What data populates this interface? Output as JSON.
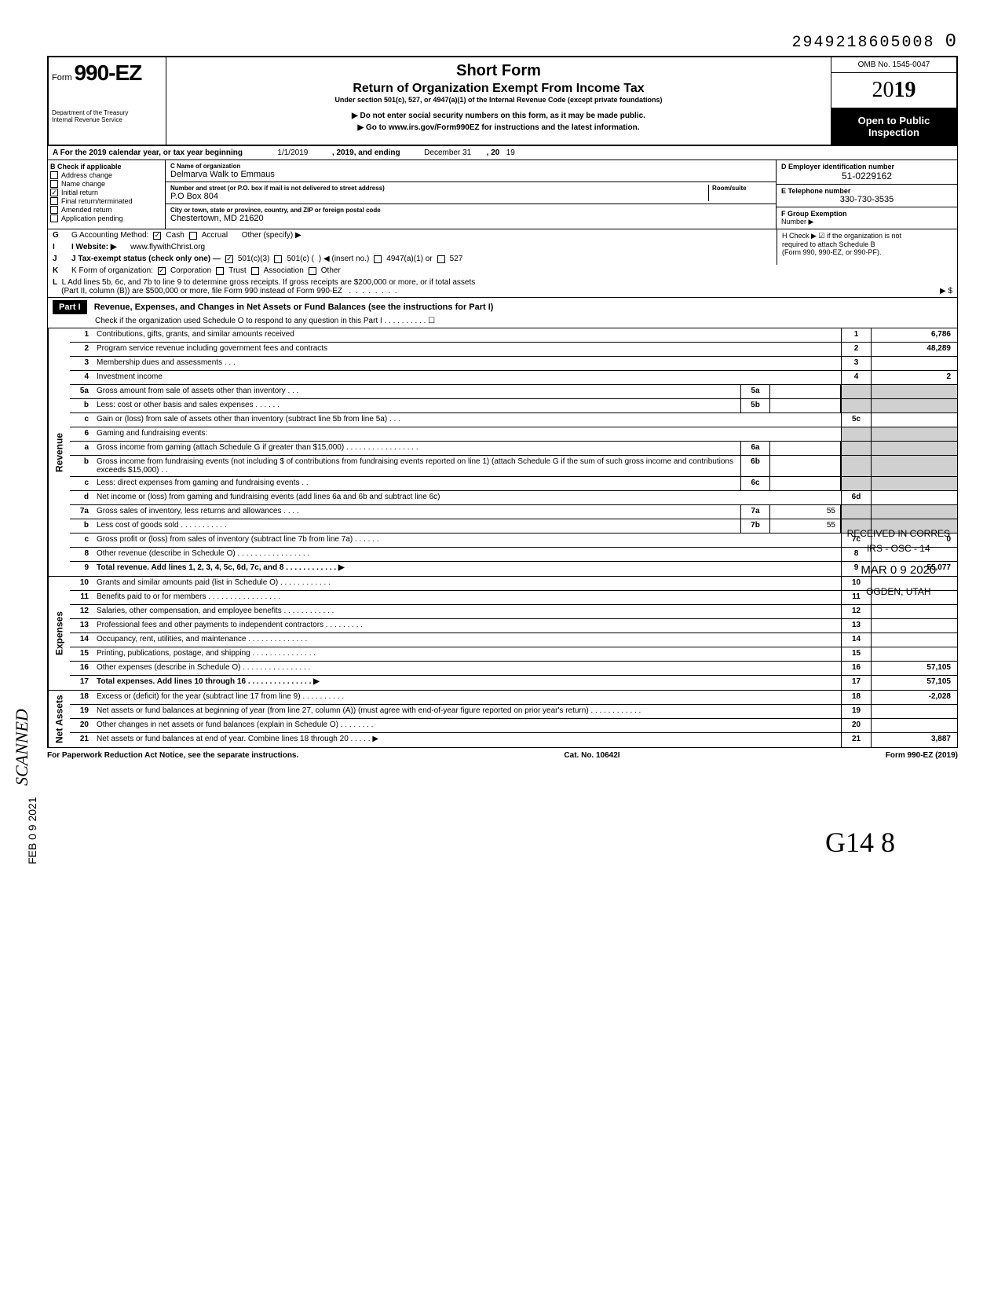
{
  "dln": "2949218605008",
  "dln_suffix": "0",
  "omb": "OMB No. 1545-0047",
  "year": "2019",
  "open_public_1": "Open to Public",
  "open_public_2": "Inspection",
  "form_prefix": "Form",
  "form_number": "990-EZ",
  "dept1": "Department of the Treasury",
  "dept2": "Internal Revenue Service",
  "title_main": "Short Form",
  "title_sub": "Return of Organization Exempt From Income Tax",
  "title_small": "Under section 501(c), 527, or 4947(a)(1) of the Internal Revenue Code (except private foundations)",
  "instruct1": "▶ Do not enter social security numbers on this form, as it may be made public.",
  "instruct2": "▶ Go to www.irs.gov/Form990EZ for instructions and the latest information.",
  "rowA": {
    "label": "A For the 2019 calendar year, or tax year beginning",
    "begin": "1/1/2019",
    "mid": ", 2019, and ending",
    "end_month": "December 31",
    "end_suffix": ", 20",
    "end_yr": "19"
  },
  "B": {
    "header": "B Check if applicable",
    "addr_change": "Address change",
    "name_change": "Name change",
    "initial_return": "Initial return",
    "final_return": "Final return/terminated",
    "amended": "Amended return",
    "app_pending": "Application pending"
  },
  "C": {
    "name_lbl": "C  Name of organization",
    "name": "Delmarva Walk to Emmaus",
    "street_lbl": "Number and street (or P.O. box if mail is not delivered to street address)",
    "room_lbl": "Room/suite",
    "street": "P.O Box 804",
    "city_lbl": "City or town, state or province, country, and ZIP or foreign postal code",
    "city": "Chestertown, MD 21620"
  },
  "D": {
    "lbl": "D Employer identification number",
    "val": "51-0229162"
  },
  "E": {
    "lbl": "E Telephone number",
    "val": "330-730-3535"
  },
  "F": {
    "lbl": "F Group Exemption",
    "lbl2": "Number ▶"
  },
  "G": {
    "lbl": "G Accounting Method:",
    "cash": "Cash",
    "accrual": "Accrual",
    "other": "Other (specify) ▶"
  },
  "H": {
    "txt1": "H Check ▶ ☑ if the organization is not",
    "txt2": "required to attach Schedule B",
    "txt3": "(Form 990, 990-EZ, or 990-PF)."
  },
  "I": {
    "lbl": "I  Website: ▶",
    "val": "www.flywithChrist.org"
  },
  "J": {
    "lbl": "J Tax-exempt status (check only one) —",
    "c3": "501(c)(3)",
    "c": "501(c) (",
    "insert": ") ◀ (insert no.)",
    "a1": "4947(a)(1) or",
    "s527": "527"
  },
  "K": {
    "lbl": "K Form of organization:",
    "corp": "Corporation",
    "trust": "Trust",
    "assoc": "Association",
    "other": "Other"
  },
  "L": {
    "txt1": "L  Add lines 5b, 6c, and 7b to line 9 to determine gross receipts. If gross receipts are $200,000 or more, or if total assets",
    "txt2": "(Part II, column (B)) are $500,000 or more, file Form 990 instead of Form 990-EZ",
    "arrow": "▶  $"
  },
  "part1": {
    "header": "Part I",
    "title": "Revenue, Expenses, and Changes in Net Assets or Fund Balances (see the instructions for Part I)",
    "sub": "Check if the organization used Schedule O to respond to any question in this Part I . . . . . . . . . . ☐"
  },
  "revenue_label": "Revenue",
  "expenses_label": "Expenses",
  "netassets_label": "Net Assets",
  "lines": {
    "1": {
      "desc": "Contributions, gifts, grants, and similar amounts received",
      "val": "6,786"
    },
    "2": {
      "desc": "Program service revenue including government fees and contracts",
      "val": "48,289"
    },
    "3": {
      "desc": "Membership dues and assessments .   .   .",
      "val": ""
    },
    "4": {
      "desc": "Investment income",
      "val": "2"
    },
    "5a": {
      "desc": "Gross amount from sale of assets other than inventory   .   .   .",
      "box": "5a",
      "ival": ""
    },
    "5b": {
      "desc": "Less: cost or other basis and sales expenses .   .   .   .   .   .",
      "box": "5b",
      "ival": ""
    },
    "5c": {
      "desc": "Gain or (loss) from sale of assets other than inventory (subtract line 5b from line 5a)  .   .   .",
      "val": ""
    },
    "6": {
      "desc": "Gaming and fundraising events:"
    },
    "6a": {
      "desc": "Gross income from gaming (attach Schedule G if greater than $15,000) .   .   .   .   .   .   .   .   .   .   .   .   .   .   .   .   .",
      "box": "6a",
      "ival": ""
    },
    "6b": {
      "desc": "Gross income from fundraising events (not including  $                        of contributions from fundraising events reported on line 1) (attach Schedule G if the sum of such gross income and contributions exceeds $15,000) .  .",
      "box": "6b",
      "ival": ""
    },
    "6c": {
      "desc": "Less: direct expenses from gaming and fundraising events   .   .",
      "box": "6c",
      "ival": ""
    },
    "6d": {
      "desc": "Net income or (loss) from gaming and fundraising events (add lines 6a and 6b and subtract line 6c)",
      "val": ""
    },
    "7a": {
      "desc": "Gross sales of inventory, less returns and allowances  .   .   .   .",
      "box": "7a",
      "ival": "55"
    },
    "7b": {
      "desc": "Less cost of goods sold        .   .   .   .   .   .   .   .   .   .   .",
      "box": "7b",
      "ival": "55"
    },
    "7c": {
      "desc": "Gross profit or (loss) from sales of inventory (subtract line 7b from line 7a)   .   .   .   .   .   .",
      "val": "0"
    },
    "8": {
      "desc": "Other revenue (describe in Schedule O) .   .   .   .   .   .   .   .   .   .   .   .   .   .   .   .   .",
      "val": ""
    },
    "9": {
      "desc": "Total revenue. Add lines 1, 2, 3, 4, 5c, 6d, 7c, and 8    .   .   .   .   .   .   .   .   .   .   .   .  ▶",
      "val": "55,077",
      "bold": true
    },
    "10": {
      "desc": "Grants and similar amounts paid (list in Schedule O)   .   .   .   .   .   .   .   .   .   .   .   .",
      "val": ""
    },
    "11": {
      "desc": "Benefits paid to or for members    .   .   .   .   .   .   .   .   .   .   .   .   .   .   .   .   .",
      "val": ""
    },
    "12": {
      "desc": "Salaries, other compensation, and employee benefits  .   .   .   .   .   .   .   .   .   .   .   .",
      "val": ""
    },
    "13": {
      "desc": "Professional fees and other payments to independent contractors .   .   .   .   .   .   .   .   .",
      "val": ""
    },
    "14": {
      "desc": "Occupancy, rent, utilities, and maintenance     .   .   .   .   .   .   .   .   .   .   .   .   .   .",
      "val": ""
    },
    "15": {
      "desc": "Printing, publications, postage, and shipping .   .   .   .   .   .   .   .   .   .   .   .   .   .   .",
      "val": ""
    },
    "16": {
      "desc": "Other expenses (describe in Schedule O)  .   .   .   .   .   .   .   .   .   .   .   .   .   .   .   .",
      "val": "57,105"
    },
    "17": {
      "desc": "Total expenses. Add lines 10 through 16  .   .   .   .   .   .   .   .   .   .   .   .   .   .   .   ▶",
      "val": "57,105",
      "bold": true
    },
    "18": {
      "desc": "Excess or (deficit) for the year (subtract line 17 from line 9)    .   .   .   .   .   .   .   .   .   .",
      "val": "-2,028"
    },
    "19": {
      "desc": "Net assets or fund balances at beginning of year (from line 27, column (A)) (must agree with end-of-year figure reported on prior year's return)     .   .   .   .   .   .   .   .   .   .   .   .",
      "val": ""
    },
    "20": {
      "desc": "Other changes in net assets or fund balances (explain in Schedule O) .   .   .   .   .   .   .   .",
      "val": ""
    },
    "21": {
      "desc": "Net assets or fund balances at end of year. Combine lines 18 through 20    .   .   .   .   .   ▶",
      "val": "3,887"
    }
  },
  "stamp_recv": {
    "l1": "RECEIVED IN CORRES",
    "l2": "IRS - OSC - 14",
    "l3": "MAR 0 9 2020",
    "l4": "OGDEN, UTAH"
  },
  "stamp_scanned": "SCANNED",
  "stamp_date": "FEB 0 9 2021",
  "footer": {
    "left": "For Paperwork Reduction Act Notice, see the separate instructions.",
    "mid": "Cat. No. 10642I",
    "right": "Form 990-EZ (2019)"
  },
  "hand_note": "G14        8",
  "colors": {
    "black": "#000000",
    "white": "#ffffff",
    "shade": "#d0d0d0"
  }
}
